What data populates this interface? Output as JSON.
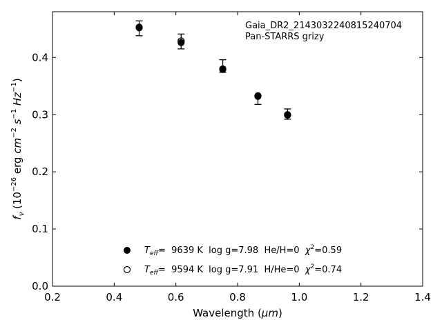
{
  "chart_data": {
    "type": "scatter",
    "title": "",
    "annotation": {
      "object_id": "Gaia_DR2_2143032240815240704",
      "survey": "Pan-STARRS grizy"
    },
    "xlabel_main": "Wavelength (",
    "xlabel_unit": "μm",
    "xlabel_close": ")",
    "ylabel_parts": {
      "f": "f",
      "nu": "ν",
      "open": " (10",
      "exp1": "−26",
      "erg": " erg ",
      "cm": "cm",
      "exp2": "−2",
      "s": " s",
      "exp3": "−1",
      "hz": " Hz",
      "exp4": "−1",
      "close": ")"
    },
    "xlim": [
      0.2,
      1.4
    ],
    "ylim": [
      0.0,
      0.48
    ],
    "xticks": [
      "0.2",
      "0.4",
      "0.6",
      "0.8",
      "1.0",
      "1.2",
      "1.4"
    ],
    "yticks": [
      "0.0",
      "0.1",
      "0.2",
      "0.3",
      "0.4"
    ],
    "grid": false,
    "observed": {
      "x": [
        0.481,
        0.617,
        0.752,
        0.866,
        0.962
      ],
      "y": [
        0.451,
        0.428,
        0.385,
        0.326,
        0.301
      ],
      "yerr": [
        0.013,
        0.013,
        0.011,
        0.008,
        0.009
      ],
      "marker": "errorbar-cap"
    },
    "series": [
      {
        "label_T": "T",
        "label_eff": "eff",
        "label_text": "=  9639 K  log g=7.98  He/H=0  ",
        "label_chi": "χ",
        "label_chi_exp": "2",
        "label_chi_val": "=0.59",
        "marker": "filled",
        "x": [
          0.481,
          0.617,
          0.752,
          0.866,
          0.962
        ],
        "y": [
          0.452,
          0.426,
          0.379,
          0.332,
          0.299
        ]
      },
      {
        "label_T": "T",
        "label_eff": "eff",
        "label_text": "=  9594 K  log g=7.91  H/He=0  ",
        "label_chi": "χ",
        "label_chi_exp": "2",
        "label_chi_val": "=0.74",
        "marker": "open",
        "x": [
          0.481,
          0.617,
          0.752,
          0.866,
          0.962
        ],
        "y": [
          0.453,
          0.429,
          0.38,
          0.333,
          0.3
        ]
      }
    ],
    "legend_location": "lower-center",
    "colors": {
      "marker": "#000000",
      "background": "#ffffff"
    }
  }
}
